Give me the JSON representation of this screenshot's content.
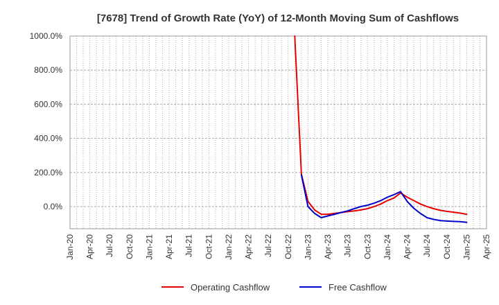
{
  "chart_data": {
    "type": "line",
    "title": "[7678]  Trend of Growth Rate (YoY) of 12-Month Moving Sum of Cashflows",
    "xlabel": "",
    "ylabel": "",
    "ylim": [
      -130,
      1000
    ],
    "y_ticks": [
      0,
      200,
      400,
      600,
      800,
      1000
    ],
    "y_tick_labels": [
      "0.0%",
      "200.0%",
      "400.0%",
      "600.0%",
      "800.0%",
      "1000.0%"
    ],
    "x_range": [
      "2020-01",
      "2025-04"
    ],
    "x_tick_labels": [
      "Jan-20",
      "Apr-20",
      "Jul-20",
      "Oct-20",
      "Jan-21",
      "Apr-21",
      "Jul-21",
      "Oct-21",
      "Jan-22",
      "Apr-22",
      "Jul-22",
      "Oct-22",
      "Jan-23",
      "Apr-23",
      "Jul-23",
      "Oct-23",
      "Jan-24",
      "Apr-24",
      "Jul-24",
      "Oct-24",
      "Jan-25",
      "Apr-25"
    ],
    "x_tick_dates": [
      "2020-01",
      "2020-04",
      "2020-07",
      "2020-10",
      "2021-01",
      "2021-04",
      "2021-07",
      "2021-10",
      "2022-01",
      "2022-04",
      "2022-07",
      "2022-10",
      "2023-01",
      "2023-04",
      "2023-07",
      "2023-10",
      "2024-01",
      "2024-04",
      "2024-07",
      "2024-10",
      "2025-01",
      "2025-04"
    ],
    "grid": true,
    "legend_position": "bottom",
    "series": [
      {
        "name": "Operating Cashflow",
        "color": "#e60000",
        "clipped_above": true,
        "points": [
          [
            "2022-11",
            1000
          ],
          [
            "2022-12",
            190
          ],
          [
            "2023-01",
            30
          ],
          [
            "2023-02",
            -20
          ],
          [
            "2023-03",
            -45
          ],
          [
            "2023-04",
            -45
          ],
          [
            "2023-05",
            -40
          ],
          [
            "2023-06",
            -35
          ],
          [
            "2023-07",
            -30
          ],
          [
            "2023-08",
            -25
          ],
          [
            "2023-09",
            -20
          ],
          [
            "2023-10",
            -12
          ],
          [
            "2023-11",
            0
          ],
          [
            "2023-12",
            15
          ],
          [
            "2024-01",
            35
          ],
          [
            "2024-02",
            50
          ],
          [
            "2024-03",
            80
          ],
          [
            "2024-04",
            55
          ],
          [
            "2024-05",
            35
          ],
          [
            "2024-06",
            15
          ],
          [
            "2024-07",
            0
          ],
          [
            "2024-08",
            -12
          ],
          [
            "2024-09",
            -22
          ],
          [
            "2024-10",
            -28
          ],
          [
            "2024-11",
            -33
          ],
          [
            "2024-12",
            -38
          ],
          [
            "2025-01",
            -45
          ]
        ]
      },
      {
        "name": "Free Cashflow",
        "color": "#0000cc",
        "points": [
          [
            "2022-12",
            185
          ],
          [
            "2023-01",
            0
          ],
          [
            "2023-02",
            -40
          ],
          [
            "2023-03",
            -65
          ],
          [
            "2023-04",
            -55
          ],
          [
            "2023-05",
            -45
          ],
          [
            "2023-06",
            -35
          ],
          [
            "2023-07",
            -25
          ],
          [
            "2023-08",
            -12
          ],
          [
            "2023-09",
            0
          ],
          [
            "2023-10",
            8
          ],
          [
            "2023-11",
            20
          ],
          [
            "2023-12",
            35
          ],
          [
            "2024-01",
            55
          ],
          [
            "2024-02",
            70
          ],
          [
            "2024-03",
            88
          ],
          [
            "2024-04",
            30
          ],
          [
            "2024-05",
            -10
          ],
          [
            "2024-06",
            -40
          ],
          [
            "2024-07",
            -65
          ],
          [
            "2024-08",
            -75
          ],
          [
            "2024-09",
            -82
          ],
          [
            "2024-10",
            -85
          ],
          [
            "2024-11",
            -87
          ],
          [
            "2024-12",
            -88
          ],
          [
            "2025-01",
            -92
          ]
        ]
      }
    ]
  }
}
